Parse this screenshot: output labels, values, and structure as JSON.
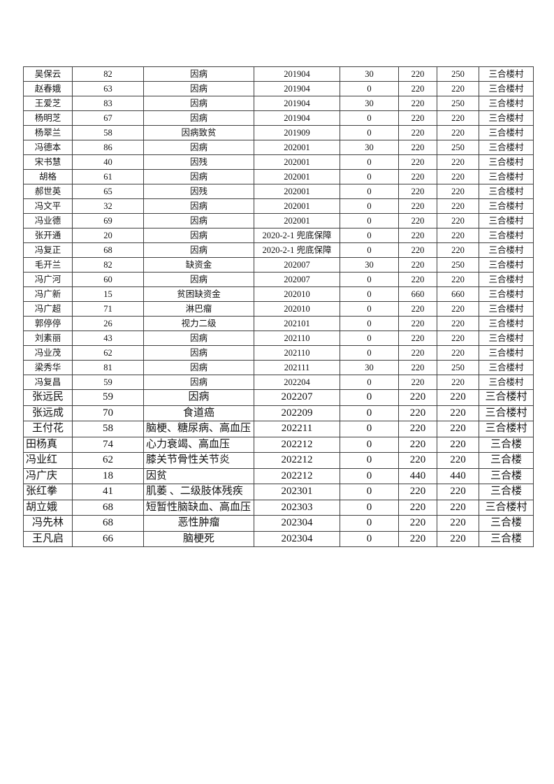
{
  "table": {
    "rows": [
      {
        "cells": [
          "吴保云",
          "82",
          "因病",
          "201904",
          "30",
          "220",
          "250",
          "三合楼村"
        ],
        "big": false,
        "name_left": false,
        "reason_left": false,
        "name_small": false,
        "date_small": false
      },
      {
        "cells": [
          "赵春娥",
          "63",
          "因病",
          "201904",
          "0",
          "220",
          "220",
          "三合楼村"
        ],
        "big": false,
        "name_left": false,
        "reason_left": false,
        "name_small": false,
        "date_small": false
      },
      {
        "cells": [
          "王爱芝",
          "83",
          "因病",
          "201904",
          "30",
          "220",
          "250",
          "三合楼村"
        ],
        "big": false,
        "name_left": false,
        "reason_left": false,
        "name_small": false,
        "date_small": false
      },
      {
        "cells": [
          "杨明芝",
          "67",
          "因病",
          "201904",
          "0",
          "220",
          "220",
          "三合楼村"
        ],
        "big": false,
        "name_left": false,
        "reason_left": false,
        "name_small": false,
        "date_small": false
      },
      {
        "cells": [
          "杨翠兰",
          "58",
          "因病致贫",
          "201909",
          "0",
          "220",
          "220",
          "三合楼村"
        ],
        "big": false,
        "name_left": false,
        "reason_left": false,
        "name_small": false,
        "date_small": false
      },
      {
        "cells": [
          "冯德本",
          "86",
          "因病",
          "202001",
          "30",
          "220",
          "250",
          "三合楼村"
        ],
        "big": false,
        "name_left": false,
        "reason_left": false,
        "name_small": false,
        "date_small": false
      },
      {
        "cells": [
          "宋书慧",
          "40",
          "因残",
          "202001",
          "0",
          "220",
          "220",
          "三合楼村"
        ],
        "big": false,
        "name_left": false,
        "reason_left": false,
        "name_small": false,
        "date_small": false
      },
      {
        "cells": [
          "胡格",
          "61",
          "因病",
          "202001",
          "0",
          "220",
          "220",
          "三合楼村"
        ],
        "big": false,
        "name_left": false,
        "reason_left": false,
        "name_small": false,
        "date_small": false
      },
      {
        "cells": [
          "郝世英",
          "65",
          "因残",
          "202001",
          "0",
          "220",
          "220",
          "三合楼村"
        ],
        "big": false,
        "name_left": false,
        "reason_left": false,
        "name_small": false,
        "date_small": false
      },
      {
        "cells": [
          "冯文平",
          "32",
          "因病",
          "202001",
          "0",
          "220",
          "220",
          "三合楼村"
        ],
        "big": false,
        "name_left": false,
        "reason_left": false,
        "name_small": false,
        "date_small": false
      },
      {
        "cells": [
          "冯业德",
          "69",
          "因病",
          "202001",
          "0",
          "220",
          "220",
          "三合楼村"
        ],
        "big": false,
        "name_left": false,
        "reason_left": false,
        "name_small": false,
        "date_small": false
      },
      {
        "cells": [
          "张开通",
          "20",
          "因病",
          "2020-2-1 兜底保障",
          "0",
          "220",
          "220",
          "三合楼村"
        ],
        "big": false,
        "name_left": false,
        "reason_left": false,
        "name_small": false,
        "date_small": false
      },
      {
        "cells": [
          "冯复正",
          "68",
          "因病",
          "2020-2-1 兜底保障",
          "0",
          "220",
          "220",
          "三合楼村"
        ],
        "big": false,
        "name_left": false,
        "reason_left": false,
        "name_small": false,
        "date_small": false
      },
      {
        "cells": [
          "毛开兰",
          "82",
          "缺资金",
          "202007",
          "30",
          "220",
          "250",
          "三合楼村"
        ],
        "big": false,
        "name_left": false,
        "reason_left": false,
        "name_small": false,
        "date_small": false
      },
      {
        "cells": [
          "冯广河",
          "60",
          "因病",
          "202007",
          "0",
          "220",
          "220",
          "三合楼村"
        ],
        "big": false,
        "name_left": false,
        "reason_left": false,
        "name_small": false,
        "date_small": false
      },
      {
        "cells": [
          "冯广新",
          "15",
          "贫困缺资金",
          "202010",
          "0",
          "660",
          "660",
          "三合楼村"
        ],
        "big": false,
        "name_left": false,
        "reason_left": false,
        "name_small": false,
        "date_small": false
      },
      {
        "cells": [
          "冯广超",
          "71",
          "淋巴瘤",
          "202010",
          "0",
          "220",
          "220",
          "三合楼村"
        ],
        "big": false,
        "name_left": false,
        "reason_left": false,
        "name_small": false,
        "date_small": false
      },
      {
        "cells": [
          "郭停停",
          "26",
          "视力二级",
          "202101",
          "0",
          "220",
          "220",
          "三合楼村"
        ],
        "big": false,
        "name_left": false,
        "reason_left": false,
        "name_small": false,
        "date_small": false
      },
      {
        "cells": [
          "刘素丽",
          "43",
          "因病",
          "202110",
          "0",
          "220",
          "220",
          "三合楼村"
        ],
        "big": false,
        "name_left": false,
        "reason_left": false,
        "name_small": false,
        "date_small": false
      },
      {
        "cells": [
          "冯业茂",
          "62",
          "因病",
          "202110",
          "0",
          "220",
          "220",
          "三合楼村"
        ],
        "big": false,
        "name_left": false,
        "reason_left": false,
        "name_small": false,
        "date_small": false
      },
      {
        "cells": [
          "梁秀华",
          "81",
          "因病",
          "202111",
          "30",
          "220",
          "250",
          "三合楼村"
        ],
        "big": false,
        "name_left": false,
        "reason_left": false,
        "name_small": false,
        "date_small": false
      },
      {
        "cells": [
          "冯复昌",
          "59",
          "因病",
          "202204",
          "0",
          "220",
          "220",
          "三合楼村"
        ],
        "big": false,
        "name_left": false,
        "reason_left": false,
        "name_small": false,
        "date_small": false
      },
      {
        "cells": [
          "张远民",
          "59",
          "因病",
          "202207",
          "0",
          "220",
          "220",
          "三合楼村"
        ],
        "big": true,
        "name_left": false,
        "reason_left": false,
        "name_small": false,
        "date_small": true
      },
      {
        "cells": [
          "张远成",
          "70",
          "食道癌",
          "202209",
          "0",
          "220",
          "220",
          "三合楼村"
        ],
        "big": true,
        "name_left": false,
        "reason_left": false,
        "name_small": false,
        "date_small": false
      },
      {
        "cells": [
          "王付花",
          "58",
          "脑梗、糖尿病、高血压",
          "202211",
          "0",
          "220",
          "220",
          "三合楼村"
        ],
        "big": true,
        "name_left": false,
        "reason_left": true,
        "name_small": false,
        "date_small": false
      },
      {
        "cells": [
          "田杨真",
          "74",
          "心力衰竭、高血压",
          "202212",
          "0",
          "220",
          "220",
          "三合楼"
        ],
        "big": true,
        "name_left": true,
        "reason_left": true,
        "name_small": false,
        "date_small": false
      },
      {
        "cells": [
          "冯业红",
          "62",
          "膝关节骨性关节炎",
          "202212",
          "0",
          "220",
          "220",
          "三合楼"
        ],
        "big": true,
        "name_left": true,
        "reason_left": true,
        "name_small": false,
        "date_small": false
      },
      {
        "cells": [
          "冯广庆",
          "18",
          "因贫",
          "202212",
          "0",
          "440",
          "440",
          "三合楼"
        ],
        "big": true,
        "name_left": true,
        "reason_left": true,
        "name_small": false,
        "date_small": false
      },
      {
        "cells": [
          "张红拳",
          "41",
          "肌萎 、二级肢体残疾",
          "202301",
          "0",
          "220",
          "220",
          "三合楼"
        ],
        "big": true,
        "name_left": true,
        "reason_left": true,
        "name_small": false,
        "date_small": false
      },
      {
        "cells": [
          "胡立娥",
          "68",
          "短暂性脑缺血、高血压",
          "202303",
          "0",
          "220",
          "220",
          "三合楼村"
        ],
        "big": true,
        "name_left": true,
        "reason_left": true,
        "name_small": false,
        "date_small": false
      },
      {
        "cells": [
          "冯先林",
          "68",
          "恶性肿瘤",
          "202304",
          "0",
          "220",
          "220",
          "三合楼"
        ],
        "big": true,
        "name_left": false,
        "reason_left": false,
        "name_small": true,
        "date_small": false
      },
      {
        "cells": [
          "王凡启",
          "66",
          "脑梗死",
          "202304",
          "0",
          "220",
          "220",
          "三合楼"
        ],
        "big": true,
        "name_left": false,
        "reason_left": false,
        "name_small": true,
        "date_small": false
      }
    ]
  }
}
